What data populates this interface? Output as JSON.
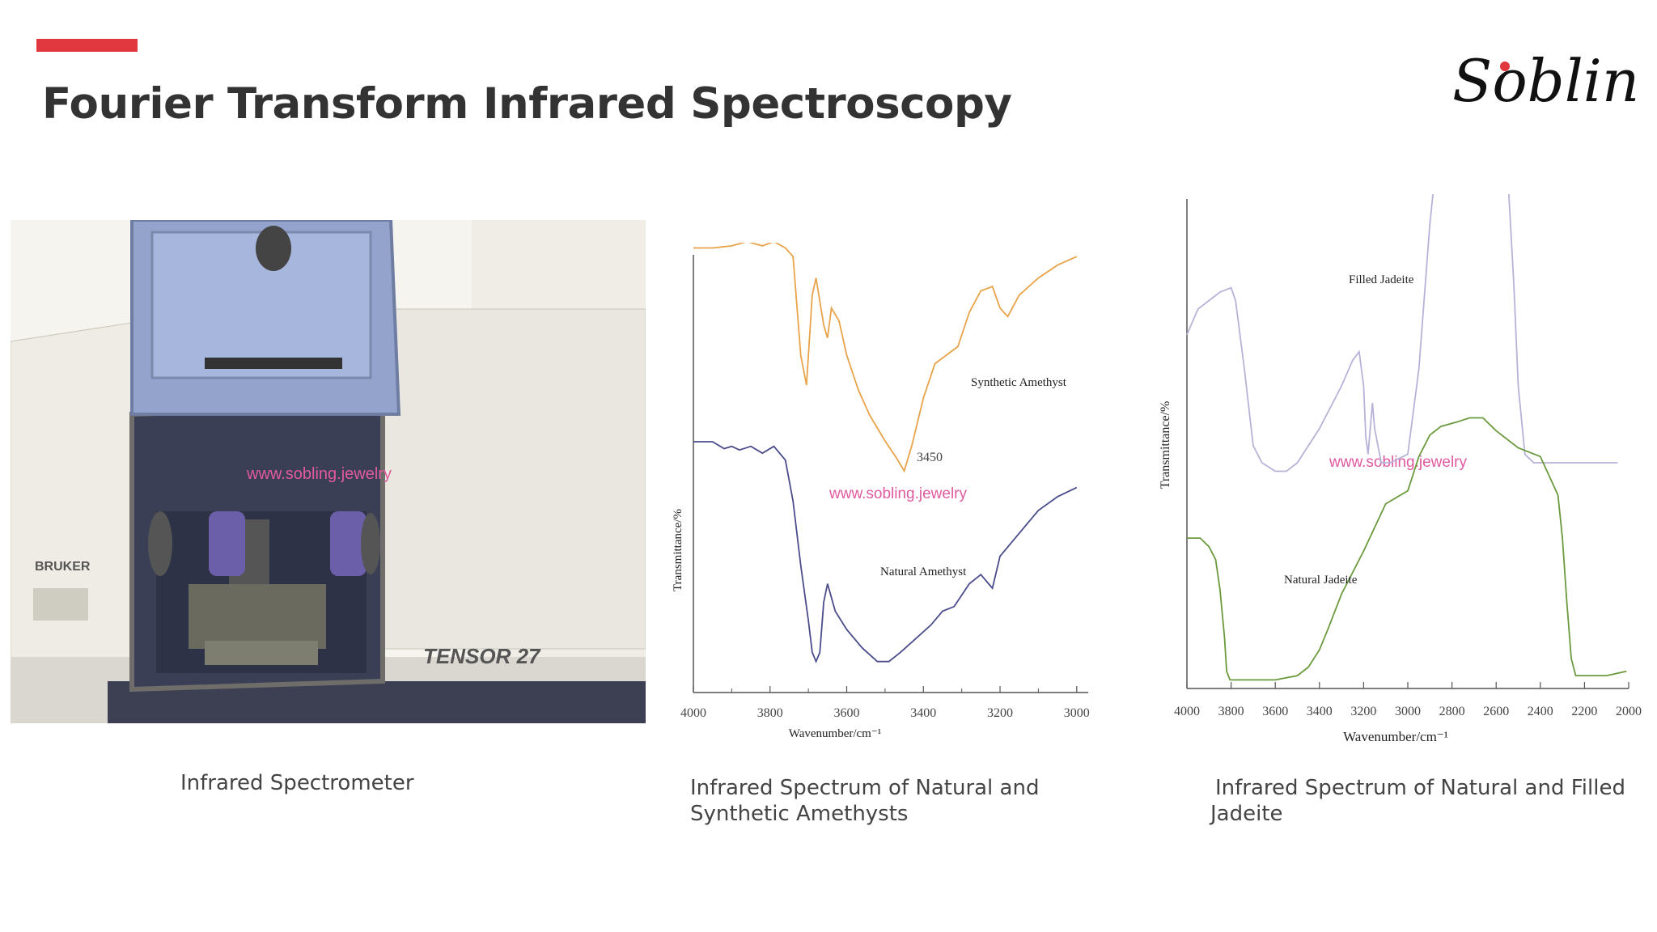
{
  "header": {
    "title": "Fourier Transform Infrared Spectroscopy",
    "logo_text": "Sobling",
    "accent_color": "#e0383e"
  },
  "photo": {
    "brand_text": "BRUKER",
    "model_text": "TENSOR 27",
    "watermark": "www.sobling.jewelry"
  },
  "captions": {
    "spectrometer": "Infrared Spectrometer",
    "amethyst": "Infrared Spectrum of Natural and Synthetic Amethysts",
    "jadeite": "Infrared Spectrum of Natural and Filled Jadeite"
  },
  "chart_data": [
    {
      "type": "line",
      "ylabel": "Transmittance/%",
      "xlabel": "Wavenumber/cm⁻¹",
      "xlim": [
        4000,
        2970
      ],
      "x_ticks": [
        "4000",
        "3800",
        "3600",
        "3400",
        "3200",
        "3000"
      ],
      "annotations": [
        "3450"
      ],
      "watermark": "www.sobling.jewelry",
      "series": [
        {
          "name": "Synthetic Amethyst",
          "color": "#e9a34a",
          "points": [
            [
              4000,
              0.95
            ],
            [
              3950,
              0.95
            ],
            [
              3900,
              0.955
            ],
            [
              3860,
              0.965
            ],
            [
              3820,
              0.955
            ],
            [
              3790,
              0.965
            ],
            [
              3760,
              0.95
            ],
            [
              3740,
              0.93
            ],
            [
              3720,
              0.7
            ],
            [
              3705,
              0.63
            ],
            [
              3690,
              0.84
            ],
            [
              3680,
              0.88
            ],
            [
              3660,
              0.77
            ],
            [
              3650,
              0.74
            ],
            [
              3640,
              0.81
            ],
            [
              3620,
              0.78
            ],
            [
              3600,
              0.7
            ],
            [
              3570,
              0.62
            ],
            [
              3540,
              0.56
            ],
            [
              3500,
              0.5
            ],
            [
              3470,
              0.46
            ],
            [
              3450,
              0.43
            ],
            [
              3430,
              0.49
            ],
            [
              3400,
              0.6
            ],
            [
              3370,
              0.68
            ],
            [
              3340,
              0.7
            ],
            [
              3310,
              0.72
            ],
            [
              3280,
              0.8
            ],
            [
              3250,
              0.85
            ],
            [
              3220,
              0.86
            ],
            [
              3200,
              0.81
            ],
            [
              3180,
              0.79
            ],
            [
              3150,
              0.84
            ],
            [
              3100,
              0.88
            ],
            [
              3050,
              0.91
            ],
            [
              3000,
              0.93
            ]
          ]
        },
        {
          "name": "Natural Amethyst",
          "color": "#4a4c8c",
          "points": [
            [
              4000,
              0.53
            ],
            [
              3950,
              0.53
            ],
            [
              3920,
              0.515
            ],
            [
              3900,
              0.52
            ],
            [
              3880,
              0.512
            ],
            [
              3850,
              0.52
            ],
            [
              3820,
              0.505
            ],
            [
              3790,
              0.52
            ],
            [
              3760,
              0.49
            ],
            [
              3740,
              0.4
            ],
            [
              3720,
              0.26
            ],
            [
              3700,
              0.14
            ],
            [
              3690,
              0.07
            ],
            [
              3680,
              0.05
            ],
            [
              3670,
              0.07
            ],
            [
              3660,
              0.18
            ],
            [
              3650,
              0.22
            ],
            [
              3630,
              0.16
            ],
            [
              3600,
              0.12
            ],
            [
              3560,
              0.08
            ],
            [
              3520,
              0.05
            ],
            [
              3490,
              0.05
            ],
            [
              3460,
              0.07
            ],
            [
              3420,
              0.1
            ],
            [
              3380,
              0.13
            ],
            [
              3350,
              0.16
            ],
            [
              3320,
              0.17
            ],
            [
              3280,
              0.22
            ],
            [
              3250,
              0.24
            ],
            [
              3230,
              0.22
            ],
            [
              3220,
              0.21
            ],
            [
              3200,
              0.28
            ],
            [
              3150,
              0.33
            ],
            [
              3100,
              0.38
            ],
            [
              3050,
              0.41
            ],
            [
              3000,
              0.43
            ]
          ]
        }
      ]
    },
    {
      "type": "line",
      "ylabel": "Transmittance/%",
      "xlabel": "Wavenumber/cm⁻¹",
      "xlim": [
        4000,
        2000
      ],
      "x_ticks": [
        "4000",
        "3800",
        "3600",
        "3400",
        "3200",
        "3000",
        "2800",
        "2600",
        "2400",
        "2200",
        "2000"
      ],
      "watermark": "www.sobling.jewelry",
      "series": [
        {
          "name": "Filled Jadeite",
          "color": "#b6b3d8",
          "points": [
            [
              4000,
              0.66
            ],
            [
              3950,
              0.69
            ],
            [
              3900,
              0.7
            ],
            [
              3850,
              0.71
            ],
            [
              3800,
              0.715
            ],
            [
              3780,
              0.7
            ],
            [
              3740,
              0.62
            ],
            [
              3700,
              0.53
            ],
            [
              3660,
              0.51
            ],
            [
              3600,
              0.5
            ],
            [
              3550,
              0.5
            ],
            [
              3500,
              0.51
            ],
            [
              3400,
              0.55
            ],
            [
              3300,
              0.6
            ],
            [
              3250,
              0.63
            ],
            [
              3220,
              0.64
            ],
            [
              3200,
              0.6
            ],
            [
              3190,
              0.54
            ],
            [
              3180,
              0.52
            ],
            [
              3160,
              0.58
            ],
            [
              3150,
              0.55
            ],
            [
              3120,
              0.51
            ],
            [
              3080,
              0.51
            ],
            [
              3000,
              0.52
            ],
            [
              2950,
              0.62
            ],
            [
              2900,
              0.79
            ],
            [
              2880,
              0.84
            ],
            [
              2850,
              0.86
            ],
            [
              2800,
              0.95
            ],
            [
              2770,
              0.99
            ],
            [
              2750,
              0.97
            ],
            [
              2720,
              0.88
            ],
            [
              2700,
              0.86
            ],
            [
              2680,
              0.86
            ],
            [
              2650,
              0.87
            ],
            [
              2620,
              0.85
            ],
            [
              2600,
              0.87
            ],
            [
              2580,
              0.9
            ],
            [
              2550,
              0.86
            ],
            [
              2520,
              0.72
            ],
            [
              2500,
              0.6
            ],
            [
              2470,
              0.52
            ],
            [
              2430,
              0.51
            ],
            [
              2400,
              0.51
            ],
            [
              2300,
              0.51
            ],
            [
              2200,
              0.51
            ],
            [
              2050,
              0.51
            ]
          ]
        },
        {
          "name": "Natural Jadeite",
          "color": "#6b9a3e",
          "points": [
            [
              4000,
              0.35
            ],
            [
              3940,
              0.35
            ],
            [
              3900,
              0.33
            ],
            [
              3870,
              0.3
            ],
            [
              3850,
              0.23
            ],
            [
              3830,
              0.12
            ],
            [
              3820,
              0.04
            ],
            [
              3805,
              0.02
            ],
            [
              3780,
              0.02
            ],
            [
              3700,
              0.02
            ],
            [
              3600,
              0.02
            ],
            [
              3500,
              0.03
            ],
            [
              3450,
              0.05
            ],
            [
              3400,
              0.09
            ],
            [
              3360,
              0.14
            ],
            [
              3300,
              0.22
            ],
            [
              3200,
              0.32
            ],
            [
              3100,
              0.43
            ],
            [
              3000,
              0.46
            ],
            [
              2950,
              0.54
            ],
            [
              2900,
              0.59
            ],
            [
              2850,
              0.61
            ],
            [
              2780,
              0.62
            ],
            [
              2720,
              0.63
            ],
            [
              2660,
              0.63
            ],
            [
              2600,
              0.6
            ],
            [
              2500,
              0.56
            ],
            [
              2400,
              0.54
            ],
            [
              2320,
              0.45
            ],
            [
              2300,
              0.35
            ],
            [
              2280,
              0.2
            ],
            [
              2260,
              0.07
            ],
            [
              2240,
              0.03
            ],
            [
              2200,
              0.03
            ],
            [
              2100,
              0.03
            ],
            [
              2010,
              0.04
            ]
          ]
        }
      ]
    }
  ]
}
